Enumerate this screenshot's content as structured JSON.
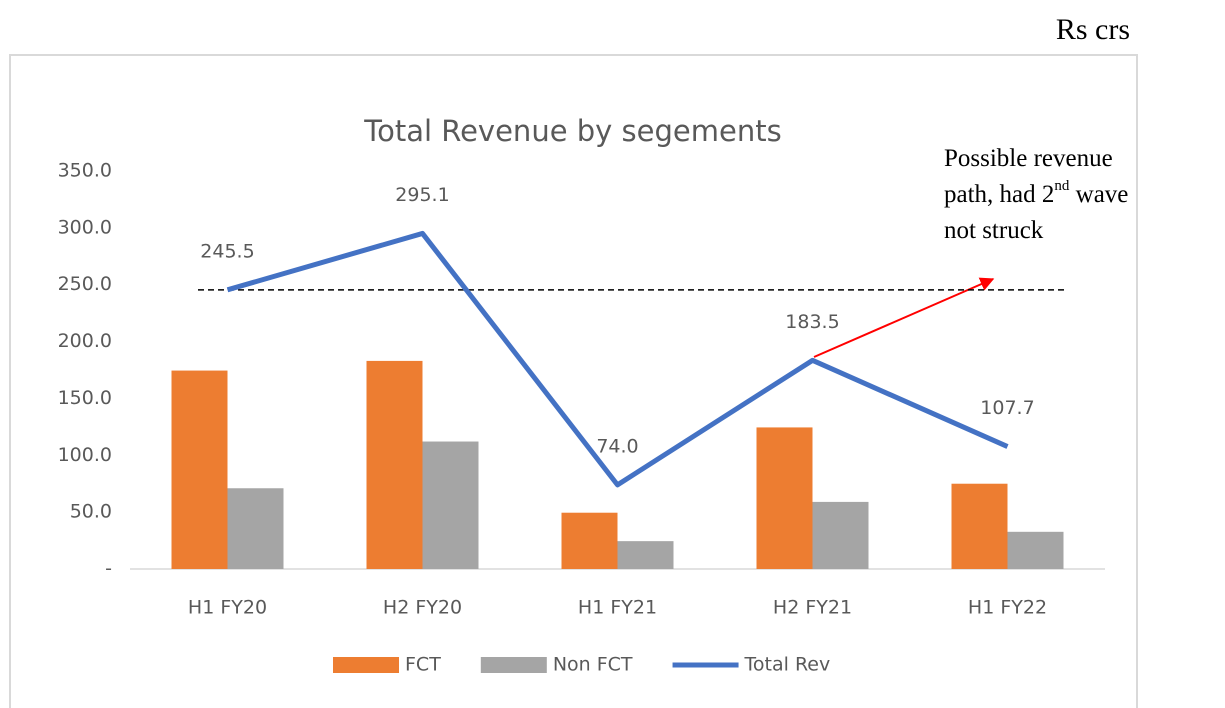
{
  "chart_data": {
    "type": "bar",
    "title": "Total Revenue by segements",
    "unit_note": "Rs crs",
    "annotation": [
      "Possible revenue",
      "path, had 2",
      "nd",
      " wave",
      "not struck"
    ],
    "categories": [
      "H1 FY20",
      "H2 FY20",
      "H1 FY21",
      "H2 FY21",
      "H1 FY22"
    ],
    "series": [
      {
        "name": "FCT",
        "color": "#ed7d31",
        "values": [
          174.5,
          183.0,
          49.5,
          124.5,
          75.0
        ]
      },
      {
        "name": "Non FCT",
        "color": "#a5a5a5",
        "values": [
          71.0,
          112.1,
          24.5,
          59.0,
          32.7
        ]
      },
      {
        "name": "Total Rev",
        "type": "line",
        "color": "#4472c4",
        "values": [
          245.5,
          295.1,
          74.0,
          183.5,
          107.7
        ],
        "value_labels": [
          "245.5",
          "295.1",
          "74.0",
          "183.5",
          "107.7"
        ]
      }
    ],
    "reference_line": 245.5,
    "ylim": [
      0,
      350
    ],
    "yticks": [
      {
        "value": 0,
        "label": "-"
      },
      {
        "value": 50,
        "label": "50.0"
      },
      {
        "value": 100,
        "label": "100.0"
      },
      {
        "value": 150,
        "label": "150.0"
      },
      {
        "value": 200,
        "label": "200.0"
      },
      {
        "value": 250,
        "label": "250.0"
      },
      {
        "value": 300,
        "label": "300.0"
      },
      {
        "value": 350,
        "label": "350.0"
      }
    ],
    "grid": false,
    "legend": "bottom"
  }
}
